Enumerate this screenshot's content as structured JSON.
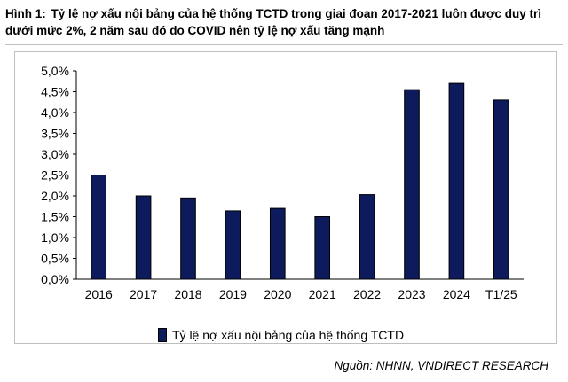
{
  "figure": {
    "label": "Hình 1:",
    "title": "Tỷ lệ nợ xấu nội bảng của hệ thống TCTD trong giai đoạn 2017-2021 luôn được duy trì dưới mức 2%, 2 năm sau đó do COVID nên tỷ lệ nợ xấu tăng mạnh",
    "source": "Nguồn: NHNN, VNDIRECT RESEARCH"
  },
  "colors": {
    "bar": "#0d1a5b",
    "bar_border": "#000000"
  },
  "chart_data": {
    "type": "bar",
    "title": "",
    "xlabel": "",
    "ylabel": "",
    "categories": [
      "2016",
      "2017",
      "2018",
      "2019",
      "2020",
      "2021",
      "2022",
      "2023",
      "2024",
      "T1/25"
    ],
    "series": [
      {
        "name": "Tỷ lệ nợ xấu nội bảng của hệ thống TCTD",
        "values": [
          2.5,
          2.0,
          1.95,
          1.64,
          1.7,
          1.5,
          2.03,
          4.55,
          4.7,
          4.3
        ]
      }
    ],
    "ylim": [
      0,
      5
    ],
    "yticks": [
      "0,0%",
      "0,5%",
      "1,0%",
      "1,5%",
      "2,0%",
      "2,5%",
      "3,0%",
      "3,5%",
      "4,0%",
      "4,5%",
      "5,0%"
    ],
    "grid": false,
    "legend_position": "bottom"
  }
}
